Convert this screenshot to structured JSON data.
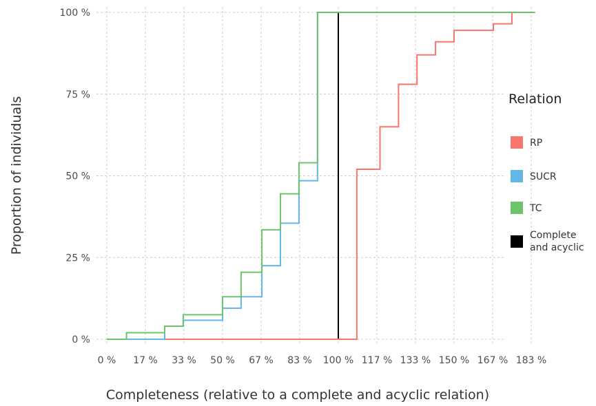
{
  "chart_data": {
    "type": "line",
    "step": true,
    "xlabel": "Completeness (relative to a complete and acyclic relation)",
    "ylabel": "Proportion of individuals",
    "xlim": [
      0,
      1.85
    ],
    "ylim": [
      0,
      1
    ],
    "x_ticks": [
      0,
      0.1667,
      0.3333,
      0.5,
      0.6667,
      0.8333,
      1.0,
      1.1667,
      1.3333,
      1.5,
      1.6667,
      1.8333
    ],
    "x_tick_labels": [
      "0 %",
      "17 %",
      "33 %",
      "50 %",
      "67 %",
      "83 %",
      "100 %",
      "117 %",
      "133 %",
      "150 %",
      "167 %",
      "183 %"
    ],
    "y_ticks": [
      0,
      0.25,
      0.5,
      0.75,
      1.0
    ],
    "y_tick_labels": [
      "0 %",
      "25 %",
      "50 %",
      "75 %",
      "100 %"
    ],
    "grid": true,
    "legend_title": "Relation",
    "legend_position": "right",
    "series": [
      {
        "name": "RP",
        "color": "#f8766d",
        "points": [
          [
            0,
            0
          ],
          [
            1.08,
            0
          ],
          [
            1.08,
            0.52
          ],
          [
            1.18,
            0.52
          ],
          [
            1.18,
            0.65
          ],
          [
            1.26,
            0.65
          ],
          [
            1.26,
            0.78
          ],
          [
            1.34,
            0.78
          ],
          [
            1.34,
            0.87
          ],
          [
            1.42,
            0.87
          ],
          [
            1.42,
            0.91
          ],
          [
            1.5,
            0.91
          ],
          [
            1.5,
            0.945
          ],
          [
            1.67,
            0.945
          ],
          [
            1.67,
            0.965
          ],
          [
            1.75,
            0.965
          ],
          [
            1.75,
            1.0
          ],
          [
            1.85,
            1.0
          ]
        ]
      },
      {
        "name": "SUCR",
        "color": "#61b8e6",
        "points": [
          [
            0,
            0
          ],
          [
            0.25,
            0
          ],
          [
            0.25,
            0.04
          ],
          [
            0.33,
            0.04
          ],
          [
            0.33,
            0.058
          ],
          [
            0.5,
            0.058
          ],
          [
            0.5,
            0.095
          ],
          [
            0.58,
            0.095
          ],
          [
            0.58,
            0.13
          ],
          [
            0.67,
            0.13
          ],
          [
            0.67,
            0.225
          ],
          [
            0.75,
            0.225
          ],
          [
            0.75,
            0.355
          ],
          [
            0.83,
            0.355
          ],
          [
            0.83,
            0.485
          ],
          [
            0.91,
            0.485
          ],
          [
            0.91,
            1.0
          ],
          [
            1.85,
            1.0
          ]
        ]
      },
      {
        "name": "TC",
        "color": "#6cc46a",
        "points": [
          [
            0,
            0
          ],
          [
            0.085,
            0
          ],
          [
            0.085,
            0.02
          ],
          [
            0.25,
            0.02
          ],
          [
            0.25,
            0.04
          ],
          [
            0.33,
            0.04
          ],
          [
            0.33,
            0.075
          ],
          [
            0.5,
            0.075
          ],
          [
            0.5,
            0.13
          ],
          [
            0.58,
            0.13
          ],
          [
            0.58,
            0.205
          ],
          [
            0.67,
            0.205
          ],
          [
            0.67,
            0.335
          ],
          [
            0.75,
            0.335
          ],
          [
            0.75,
            0.445
          ],
          [
            0.83,
            0.445
          ],
          [
            0.83,
            0.54
          ],
          [
            0.91,
            0.54
          ],
          [
            0.91,
            1.0
          ],
          [
            1.85,
            1.0
          ]
        ]
      },
      {
        "name": "Complete and acyclic",
        "legend_lines": [
          "Complete",
          "and acyclic"
        ],
        "color": "#000000",
        "points": [
          [
            0,
            0
          ],
          [
            1.0,
            0
          ],
          [
            1.0,
            1.0
          ]
        ]
      }
    ]
  }
}
